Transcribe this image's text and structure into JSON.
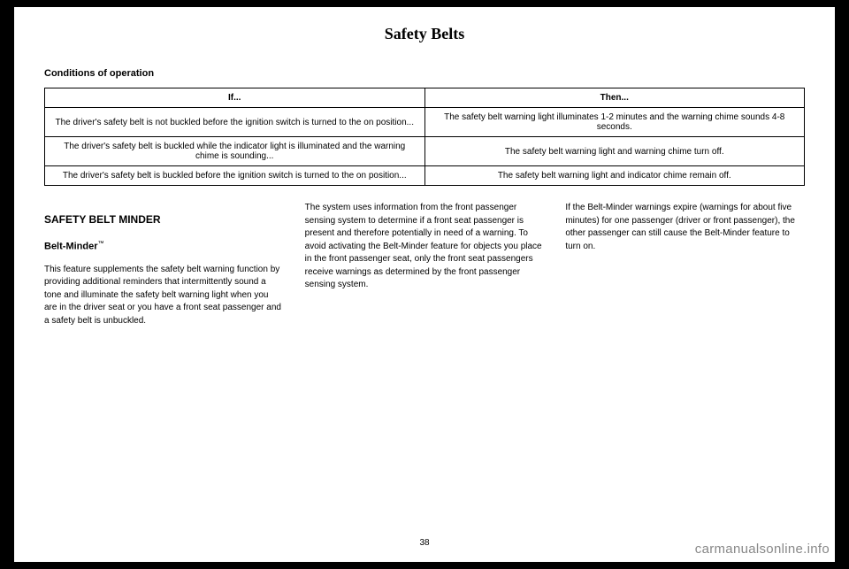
{
  "header": {
    "title": "Safety Belts"
  },
  "sectionLabel": "Conditions of operation",
  "table": {
    "headers": {
      "if": "If...",
      "then": "Then..."
    },
    "rows": [
      {
        "if": "The driver's safety belt is not buckled before the ignition switch is turned to the on position...",
        "then": "The safety belt warning light illuminates 1-2 minutes and the warning chime sounds 4-8 seconds."
      },
      {
        "if": "The driver's safety belt is buckled while the indicator light is illuminated and the warning chime is sounding...",
        "then": "The safety belt warning light and warning chime turn off."
      },
      {
        "if": "The driver's safety belt is buckled before the ignition switch is turned to the on position...",
        "then": "The safety belt warning light and indicator chime remain off."
      }
    ]
  },
  "col1": {
    "heading": "SAFETY BELT MINDER",
    "subheading": "Belt-Minder",
    "tm": "™",
    "para1": "This feature supplements the safety belt warning function by providing additional reminders that intermittently sound a tone and illuminate the safety belt warning light when you are in the driver seat or you have a front seat passenger and a safety belt is unbuckled."
  },
  "col2": {
    "para1": "The system uses information from the front passenger sensing system to determine if a front seat passenger is present and therefore potentially in need of a warning. To avoid activating the Belt-Minder feature for objects you place in the front passenger seat, only the front seat passengers receive warnings as determined by the front passenger sensing system."
  },
  "col3": {
    "para1": "If the Belt-Minder warnings expire (warnings for about five minutes) for one passenger (driver or front passenger), the other passenger can still cause the Belt-Minder feature to turn on."
  },
  "pageNumber": "38",
  "watermark": "carmanualsonline.info"
}
